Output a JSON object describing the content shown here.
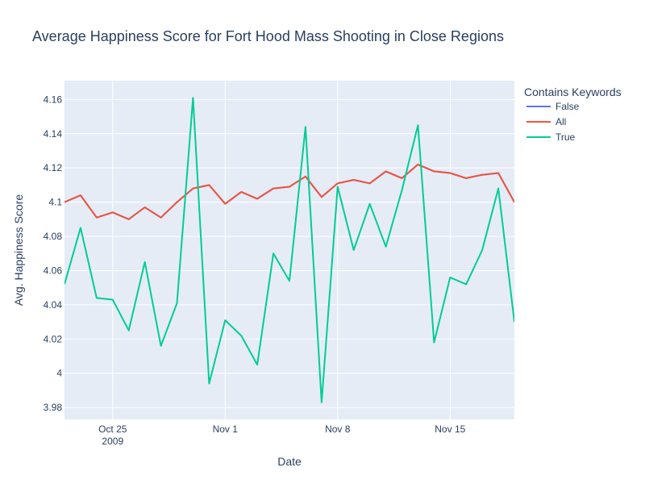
{
  "chart_data": {
    "type": "line",
    "title": "Average Happiness Score for Fort Hood Mass Shooting in Close Regions",
    "xlabel": "Date",
    "ylabel": "Avg. Happiness Score",
    "x": [
      "2009-10-22",
      "2009-10-23",
      "2009-10-24",
      "2009-10-25",
      "2009-10-26",
      "2009-10-27",
      "2009-10-28",
      "2009-10-29",
      "2009-10-30",
      "2009-10-31",
      "2009-11-01",
      "2009-11-02",
      "2009-11-03",
      "2009-11-04",
      "2009-11-05",
      "2009-11-06",
      "2009-11-07",
      "2009-11-08",
      "2009-11-09",
      "2009-11-10",
      "2009-11-11",
      "2009-11-12",
      "2009-11-13",
      "2009-11-14",
      "2009-11-15",
      "2009-11-16",
      "2009-11-17",
      "2009-11-18",
      "2009-11-19"
    ],
    "xlim": [
      "2009-10-22",
      "2009-11-19"
    ],
    "ylim": [
      3.973,
      4.171
    ],
    "x_ticks": [
      {
        "date": "2009-10-25",
        "label": "Oct 25",
        "sublabel": "2009"
      },
      {
        "date": "2009-11-01",
        "label": "Nov 1",
        "sublabel": ""
      },
      {
        "date": "2009-11-08",
        "label": "Nov 8",
        "sublabel": ""
      },
      {
        "date": "2009-11-15",
        "label": "Nov 15",
        "sublabel": ""
      }
    ],
    "y_ticks": [
      {
        "value": 3.98,
        "label": "3.98"
      },
      {
        "value": 4.0,
        "label": "4"
      },
      {
        "value": 4.02,
        "label": "4.02"
      },
      {
        "value": 4.04,
        "label": "4.04"
      },
      {
        "value": 4.06,
        "label": "4.06"
      },
      {
        "value": 4.08,
        "label": "4.08"
      },
      {
        "value": 4.1,
        "label": "4.1"
      },
      {
        "value": 4.12,
        "label": "4.12"
      },
      {
        "value": 4.14,
        "label": "4.14"
      },
      {
        "value": 4.16,
        "label": "4.16"
      }
    ],
    "legend": {
      "title": "Contains Keywords",
      "placement": "right"
    },
    "grid": true,
    "series": [
      {
        "name": "False",
        "color": "#636efa",
        "values": [
          4.1,
          4.104,
          4.091,
          4.094,
          4.09,
          4.097,
          4.091,
          4.1,
          4.108,
          4.11,
          4.099,
          4.106,
          4.102,
          4.108,
          4.109,
          4.115,
          4.103,
          4.111,
          4.113,
          4.111,
          4.118,
          4.114,
          4.122,
          4.118,
          4.117,
          4.114,
          4.116,
          4.117,
          4.1
        ]
      },
      {
        "name": "All",
        "color": "#ef553b",
        "values": [
          4.1,
          4.104,
          4.091,
          4.094,
          4.09,
          4.097,
          4.091,
          4.1,
          4.108,
          4.11,
          4.099,
          4.106,
          4.102,
          4.108,
          4.109,
          4.115,
          4.103,
          4.111,
          4.113,
          4.111,
          4.118,
          4.114,
          4.122,
          4.118,
          4.117,
          4.114,
          4.116,
          4.117,
          4.1
        ]
      },
      {
        "name": "True",
        "color": "#00cc96",
        "values": [
          4.052,
          4.085,
          4.044,
          4.043,
          4.025,
          4.065,
          4.016,
          4.041,
          4.161,
          3.994,
          4.031,
          4.022,
          4.005,
          4.07,
          4.054,
          4.144,
          3.983,
          4.109,
          4.072,
          4.099,
          4.074,
          4.107,
          4.145,
          4.018,
          4.056,
          4.052,
          4.072,
          4.108,
          4.03
        ]
      }
    ]
  }
}
